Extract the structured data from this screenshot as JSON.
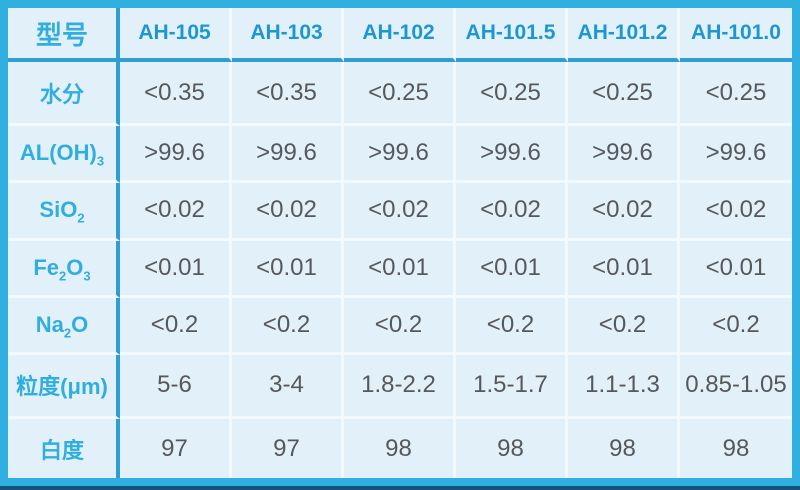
{
  "colors": {
    "border": "#2fb0e0",
    "strong_line": "#2f9fd2",
    "grid_line": "#f2fafd",
    "cell_bg": "#e2f1f9",
    "header_text": "#1e96d2",
    "label_text": "#31aede",
    "value_text": "#56585c",
    "bottom_edge": "#14537c"
  },
  "table": {
    "header": {
      "label": "型号",
      "columns": [
        "AH-105",
        "AH-103",
        "AH-102",
        "AH-101.5",
        "AH-101.2",
        "AH-101.0"
      ]
    },
    "rows": [
      {
        "label": [
          {
            "t": "水分",
            "sub": false
          }
        ],
        "values": [
          "<0.35",
          "<0.35",
          "<0.25",
          "<0.25",
          "<0.25",
          "<0.25"
        ]
      },
      {
        "label": [
          {
            "t": "AL(OH)",
            "sub": false
          },
          {
            "t": "3",
            "sub": true
          }
        ],
        "values": [
          ">99.6",
          ">99.6",
          ">99.6",
          ">99.6",
          ">99.6",
          ">99.6"
        ]
      },
      {
        "label": [
          {
            "t": "SiO",
            "sub": false
          },
          {
            "t": "2",
            "sub": true
          }
        ],
        "values": [
          "<0.02",
          "<0.02",
          "<0.02",
          "<0.02",
          "<0.02",
          "<0.02"
        ]
      },
      {
        "label": [
          {
            "t": "Fe",
            "sub": false
          },
          {
            "t": "2",
            "sub": true
          },
          {
            "t": "O",
            "sub": false
          },
          {
            "t": "3",
            "sub": true
          }
        ],
        "values": [
          "<0.01",
          "<0.01",
          "<0.01",
          "<0.01",
          "<0.01",
          "<0.01"
        ]
      },
      {
        "label": [
          {
            "t": "Na",
            "sub": false
          },
          {
            "t": "2",
            "sub": true
          },
          {
            "t": "O",
            "sub": false
          }
        ],
        "values": [
          "<0.2",
          "<0.2",
          "<0.2",
          "<0.2",
          "<0.2",
          "<0.2"
        ]
      },
      {
        "label": [
          {
            "t": "粒度(μm)",
            "sub": false
          }
        ],
        "values": [
          "5-6",
          "3-4",
          "1.8-2.2",
          "1.5-1.7",
          "1.1-1.3",
          "0.85-1.05"
        ]
      },
      {
        "label": [
          {
            "t": "白度",
            "sub": false
          }
        ],
        "values": [
          "97",
          "97",
          "98",
          "98",
          "98",
          "98"
        ]
      }
    ]
  },
  "chart_data": {
    "type": "table",
    "title": "",
    "columns": [
      "型号",
      "AH-105",
      "AH-103",
      "AH-102",
      "AH-101.5",
      "AH-101.2",
      "AH-101.0"
    ],
    "rows": [
      [
        "水分",
        "<0.35",
        "<0.35",
        "<0.25",
        "<0.25",
        "<0.25",
        "<0.25"
      ],
      [
        "AL(OH)3",
        ">99.6",
        ">99.6",
        ">99.6",
        ">99.6",
        ">99.6",
        ">99.6"
      ],
      [
        "SiO2",
        "<0.02",
        "<0.02",
        "<0.02",
        "<0.02",
        "<0.02",
        "<0.02"
      ],
      [
        "Fe2O3",
        "<0.01",
        "<0.01",
        "<0.01",
        "<0.01",
        "<0.01",
        "<0.01"
      ],
      [
        "Na2O",
        "<0.2",
        "<0.2",
        "<0.2",
        "<0.2",
        "<0.2",
        "<0.2"
      ],
      [
        "粒度(μm)",
        "5-6",
        "3-4",
        "1.8-2.2",
        "1.5-1.7",
        "1.1-1.3",
        "0.85-1.05"
      ],
      [
        "白度",
        "97",
        "97",
        "98",
        "98",
        "98",
        "98"
      ]
    ]
  }
}
